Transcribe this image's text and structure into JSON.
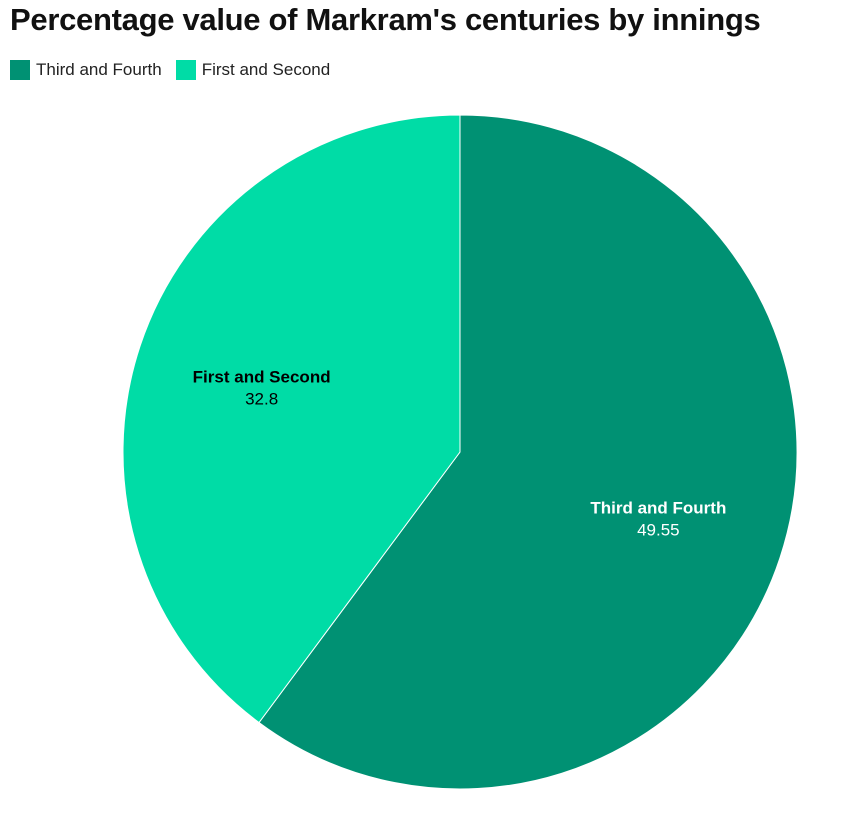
{
  "chart_data": {
    "type": "pie",
    "title": "Percentage value of Markram's centuries by innings",
    "legend_position": "top-left",
    "slices": [
      {
        "label": "Third and Fourth",
        "value": 49.55,
        "value_text": "49.55",
        "color": "#009173",
        "label_color": "#ffffff"
      },
      {
        "label": "First and Second",
        "value": 32.8,
        "value_text": "32.8",
        "color": "#00dca6",
        "label_color": "#000000"
      }
    ],
    "start_angle": "12 o'clock",
    "direction": "clockwise"
  }
}
